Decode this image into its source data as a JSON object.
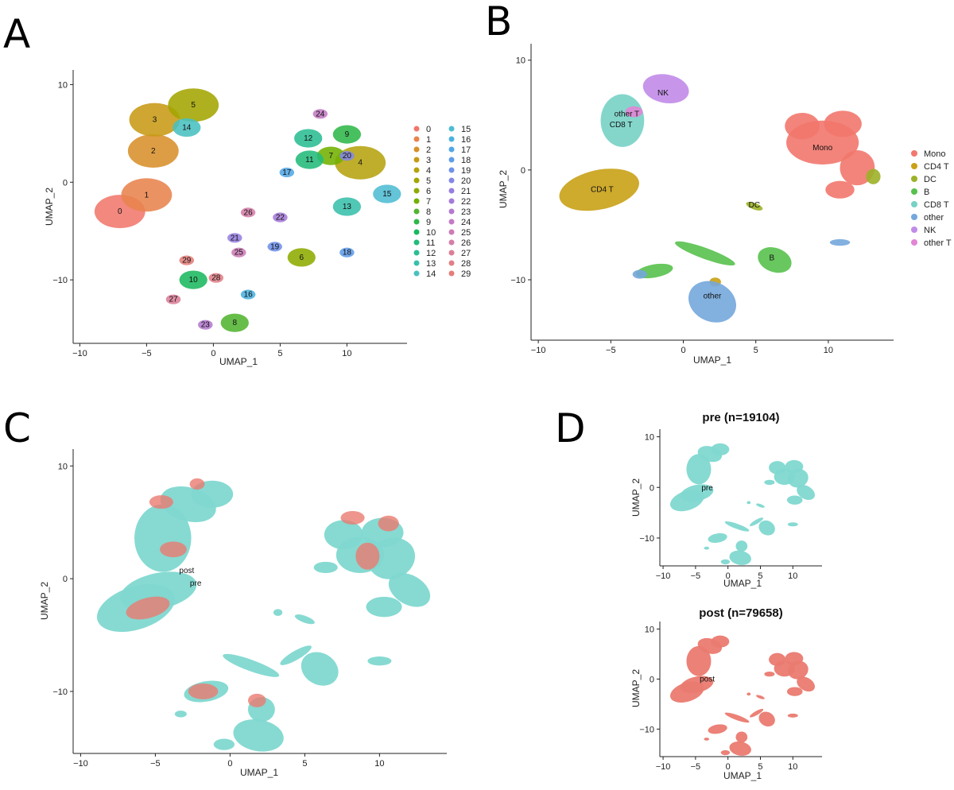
{
  "panels": {
    "A": {
      "letter": "A",
      "xlabel": "UMAP_1",
      "ylabel": "UMAP_2",
      "xticks": [
        "−10",
        "−5",
        "0",
        "5",
        "10"
      ],
      "yticks": [
        "10",
        "0",
        "−10"
      ]
    },
    "B": {
      "letter": "B",
      "xlabel": "UMAP_1",
      "ylabel": "UMAP_2",
      "xticks": [
        "−10",
        "−5",
        "0",
        "5",
        "10"
      ],
      "yticks": [
        "10",
        "0",
        "−10"
      ]
    },
    "C": {
      "letter": "C",
      "xlabel": "UMAP_1",
      "ylabel": "UMAP_2",
      "xticks": [
        "−10",
        "−5",
        "0",
        "5",
        "10"
      ],
      "yticks": [
        "10",
        "0",
        "−10"
      ]
    },
    "D": {
      "letter": "D",
      "xlabel": "UMAP_1",
      "ylabel": "UMAP_2",
      "xticks": [
        "−10",
        "−5",
        "0",
        "5",
        "10"
      ],
      "yticks": [
        "10",
        "0",
        "−10"
      ]
    }
  },
  "colors": {
    "pre": "#7fd8d0",
    "post": "#ea7a70"
  },
  "chart_data": [
    {
      "panel": "A",
      "type": "scatter",
      "xlabel": "UMAP_1",
      "ylabel": "UMAP_2",
      "xlim": [
        -10.5,
        14.5
      ],
      "ylim": [
        -16.5,
        11.5
      ],
      "legend": "right",
      "series": [
        {
          "name": "0",
          "color": "#f0776c",
          "label_at": [
            -7,
            -3
          ]
        },
        {
          "name": "1",
          "color": "#e8834d",
          "label_at": [
            -5,
            -1.3
          ]
        },
        {
          "name": "2",
          "color": "#d8902b",
          "label_at": [
            -4.5,
            3.2
          ]
        },
        {
          "name": "3",
          "color": "#c79a15",
          "label_at": [
            -4.4,
            6.4
          ]
        },
        {
          "name": "4",
          "color": "#b5a30e",
          "label_at": [
            11,
            2
          ]
        },
        {
          "name": "5",
          "color": "#a3a500",
          "label_at": [
            -1.5,
            7.9
          ]
        },
        {
          "name": "6",
          "color": "#8dab00",
          "label_at": [
            6.6,
            -7.7
          ]
        },
        {
          "name": "7",
          "color": "#72b000",
          "label_at": [
            8.8,
            2.7
          ]
        },
        {
          "name": "8",
          "color": "#52b430",
          "label_at": [
            1.6,
            -14.4
          ]
        },
        {
          "name": "9",
          "color": "#2fb74a",
          "label_at": [
            10,
            4.9
          ]
        },
        {
          "name": "10",
          "color": "#1bb85f",
          "label_at": [
            -1.5,
            -10
          ]
        },
        {
          "name": "11",
          "color": "#22bb7a",
          "label_at": [
            7.2,
            2.3
          ]
        },
        {
          "name": "12",
          "color": "#2abd93",
          "label_at": [
            7.1,
            4.5
          ]
        },
        {
          "name": "13",
          "color": "#39bfab",
          "label_at": [
            10,
            -2.5
          ]
        },
        {
          "name": "14",
          "color": "#48c0c1",
          "label_at": [
            -2,
            5.6
          ]
        },
        {
          "name": "15",
          "color": "#4ebcd3",
          "label_at": [
            13,
            -1.2
          ]
        },
        {
          "name": "16",
          "color": "#4bb2df",
          "label_at": [
            2.6,
            -11.5
          ]
        },
        {
          "name": "17",
          "color": "#52a7e6",
          "label_at": [
            5.5,
            1
          ]
        },
        {
          "name": "18",
          "color": "#5f9ce9",
          "label_at": [
            10,
            -7.2
          ]
        },
        {
          "name": "19",
          "color": "#7091e9",
          "label_at": [
            4.6,
            -6.6
          ]
        },
        {
          "name": "20",
          "color": "#8487e6",
          "label_at": [
            10,
            2.7
          ]
        },
        {
          "name": "21",
          "color": "#967fe0",
          "label_at": [
            1.6,
            -5.7
          ]
        },
        {
          "name": "22",
          "color": "#a57bd8",
          "label_at": [
            5,
            -3.6
          ]
        },
        {
          "name": "23",
          "color": "#b47ace",
          "label_at": [
            -0.6,
            -14.6
          ]
        },
        {
          "name": "24",
          "color": "#c37bc3",
          "label_at": [
            8,
            7
          ]
        },
        {
          "name": "25",
          "color": "#cd7cb6",
          "label_at": [
            1.9,
            -7.2
          ]
        },
        {
          "name": "26",
          "color": "#d57ea8",
          "label_at": [
            2.6,
            -3.1
          ]
        },
        {
          "name": "27",
          "color": "#dc7e98",
          "label_at": [
            -3,
            -12
          ]
        },
        {
          "name": "28",
          "color": "#e07f88",
          "label_at": [
            0.2,
            -9.8
          ]
        },
        {
          "name": "29",
          "color": "#e47e7a",
          "label_at": [
            -2,
            -8
          ]
        }
      ]
    },
    {
      "panel": "B",
      "type": "scatter",
      "xlabel": "UMAP_1",
      "ylabel": "UMAP_2",
      "xlim": [
        -10.5,
        14.5
      ],
      "ylim": [
        -15.5,
        11.5
      ],
      "legend": "right",
      "series": [
        {
          "name": "Mono",
          "color": "#f2776d",
          "label_at": [
            9.6,
            2
          ]
        },
        {
          "name": "CD4 T",
          "color": "#c9a116",
          "label_at": [
            -5.6,
            -1.8
          ]
        },
        {
          "name": "DC",
          "color": "#9cb128",
          "label_at": [
            4.9,
            -3.2
          ]
        },
        {
          "name": "B",
          "color": "#58c14d",
          "label_at": [
            6.1,
            -8
          ]
        },
        {
          "name": "CD8 T",
          "color": "#77d2c5",
          "label_at": [
            -4.3,
            4.1
          ]
        },
        {
          "name": "other",
          "color": "#74a7dc",
          "label_at": [
            2,
            -11.5
          ]
        },
        {
          "name": "NK",
          "color": "#c18be8",
          "label_at": [
            -1.4,
            7
          ]
        },
        {
          "name": "other T",
          "color": "#e285d5",
          "label_at": [
            -3.9,
            5.1
          ]
        }
      ]
    },
    {
      "panel": "C",
      "type": "scatter",
      "xlabel": "UMAP_1",
      "ylabel": "UMAP_2",
      "xlim": [
        -10.5,
        14.5
      ],
      "ylim": [
        -15.5,
        11.5
      ],
      "series": [
        {
          "name": "post",
          "color": "#ea7a70",
          "label_at": [
            -2.9,
            0.7
          ]
        },
        {
          "name": "pre",
          "color": "#7fd8d0",
          "label_at": [
            -2.3,
            -0.4
          ]
        }
      ]
    },
    {
      "panel": "D",
      "type": "scatter",
      "facets": [
        {
          "title": "pre (n=19104)",
          "group": "pre",
          "label": "pre",
          "label_at": [
            -3.2,
            -0.1
          ],
          "xlim": [
            -10.5,
            14.5
          ],
          "ylim": [
            -15.5,
            11.5
          ],
          "xlabel": "UMAP_1",
          "ylabel": "UMAP_2"
        },
        {
          "title": "post (n=79658)",
          "group": "post",
          "label": "post",
          "label_at": [
            -3.2,
            0
          ],
          "xlim": [
            -10.5,
            14.5
          ],
          "ylim": [
            -15.5,
            11.5
          ],
          "xlabel": "UMAP_1",
          "ylabel": "UMAP_2"
        }
      ]
    }
  ]
}
